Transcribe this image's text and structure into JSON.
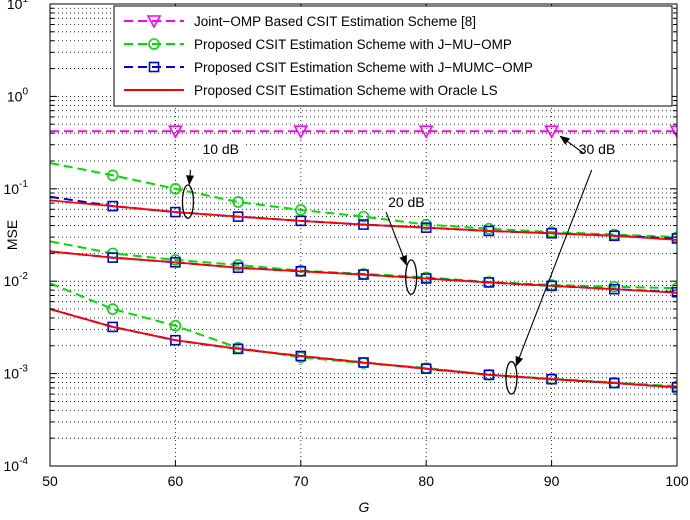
{
  "chart_data": {
    "type": "line",
    "xlabel": "G",
    "ylabel": "MSE",
    "xlim": [
      50,
      100
    ],
    "ylim": [
      0.0001,
      10
    ],
    "yscale": "log",
    "grid": true,
    "legend_position": "top-right",
    "x_ticks": [
      "50",
      "60",
      "70",
      "80",
      "90",
      "100"
    ],
    "y_ticks": [
      {
        "base": "10",
        "exp": "-4",
        "value": 0.0001
      },
      {
        "base": "10",
        "exp": "-3",
        "value": 0.001
      },
      {
        "base": "10",
        "exp": "-2",
        "value": 0.01
      },
      {
        "base": "10",
        "exp": "-1",
        "value": 0.1
      },
      {
        "base": "10",
        "exp": "0",
        "value": 1
      },
      {
        "base": "10",
        "exp": "1",
        "value": 10
      }
    ],
    "x": [
      50,
      55,
      60,
      65,
      70,
      75,
      80,
      85,
      90,
      95,
      100
    ],
    "series": [
      {
        "name": "Joint−OMP Based CSIT Estimation Scheme [8]",
        "color": "#ff00ff",
        "dash": "dashed",
        "marker": "triangle-down",
        "marker_x": [
          60,
          70,
          80,
          90,
          100
        ],
        "groups": [
          {
            "snr": "all",
            "values": [
              0.42,
              0.42,
              0.42,
              0.42,
              0.42,
              0.42,
              0.42,
              0.42,
              0.42,
              0.42,
              0.42
            ]
          }
        ]
      },
      {
        "name": "Proposed CSIT Estimation Scheme with J−MU−OMP",
        "color": "#00dd00",
        "dash": "dashed",
        "marker": "circle",
        "marker_x": [
          55,
          60,
          65,
          70,
          75,
          80,
          85,
          90,
          95,
          100
        ],
        "groups": [
          {
            "snr": "10 dB",
            "values": [
              0.19,
              0.14,
              0.1,
              0.072,
              0.059,
              0.05,
              0.041,
              0.037,
              0.034,
              0.032,
              0.03
            ]
          },
          {
            "snr": "20 dB",
            "values": [
              0.027,
              0.02,
              0.017,
              0.015,
              0.013,
              0.012,
              0.011,
              0.0098,
              0.0091,
              0.0087,
              0.0084
            ]
          },
          {
            "snr": "30 dB",
            "values": [
              0.0095,
              0.005,
              0.0033,
              0.0019,
              0.0015,
              0.0013,
              0.00115,
              0.00097,
              0.00088,
              0.0008,
              0.00073
            ]
          }
        ]
      },
      {
        "name": "Proposed CSIT Estimation Scheme with  J−MUMC−OMP",
        "color": "#0000dd",
        "dash": "dashed",
        "marker": "square",
        "marker_x": [
          55,
          60,
          65,
          70,
          75,
          80,
          85,
          90,
          95,
          100
        ],
        "groups": [
          {
            "snr": "10 dB",
            "values": [
              0.082,
              0.065,
              0.056,
              0.05,
              0.045,
              0.041,
              0.038,
              0.035,
              0.033,
              0.031,
              0.029
            ]
          },
          {
            "snr": "20 dB",
            "values": [
              0.021,
              0.018,
              0.016,
              0.014,
              0.0128,
              0.0118,
              0.0107,
              0.0097,
              0.0089,
              0.0082,
              0.0076
            ]
          },
          {
            "snr": "30 dB",
            "values": [
              0.005,
              0.0032,
              0.0023,
              0.00185,
              0.00155,
              0.00132,
              0.00113,
              0.00097,
              0.00087,
              0.00079,
              0.00071
            ]
          }
        ]
      },
      {
        "name": "Proposed CSIT Estimation Scheme with Oracle LS",
        "color": "#ff0000",
        "dash": "solid",
        "marker": "none",
        "marker_x": [],
        "groups": [
          {
            "snr": "10 dB",
            "values": [
              0.075,
              0.065,
              0.056,
              0.05,
              0.045,
              0.041,
              0.038,
              0.035,
              0.033,
              0.031,
              0.028
            ]
          },
          {
            "snr": "20 dB",
            "values": [
              0.021,
              0.018,
              0.016,
              0.014,
              0.0128,
              0.0118,
              0.0107,
              0.0097,
              0.0089,
              0.0082,
              0.0075
            ]
          },
          {
            "snr": "30 dB",
            "values": [
              0.005,
              0.0032,
              0.0023,
              0.00185,
              0.00155,
              0.00132,
              0.00113,
              0.00097,
              0.00087,
              0.00079,
              0.00071
            ]
          }
        ]
      }
    ],
    "annotations": [
      {
        "text": "10 dB",
        "ellipse": {
          "x": 61.0,
          "y_low": 0.048,
          "y_high": 0.11
        },
        "arrow_from": {
          "x": 61.2,
          "y": 0.16
        }
      },
      {
        "text": "20 dB",
        "ellipse": {
          "x": 78.8,
          "y_low": 0.0072,
          "y_high": 0.017
        },
        "arrow_from": {
          "x": 76.8,
          "y": 0.056
        }
      },
      {
        "text": "30 dB",
        "ellipse": {
          "x": 86.8,
          "y_low": 0.0006,
          "y_high": 0.00135
        },
        "arrow_from": {
          "x": 93.2,
          "y": 0.16
        }
      }
    ],
    "extra_arrows": [
      {
        "from": {
          "x": 92.6,
          "y": 0.24
        },
        "to": {
          "x": 90.7,
          "y": 0.37
        }
      }
    ]
  }
}
